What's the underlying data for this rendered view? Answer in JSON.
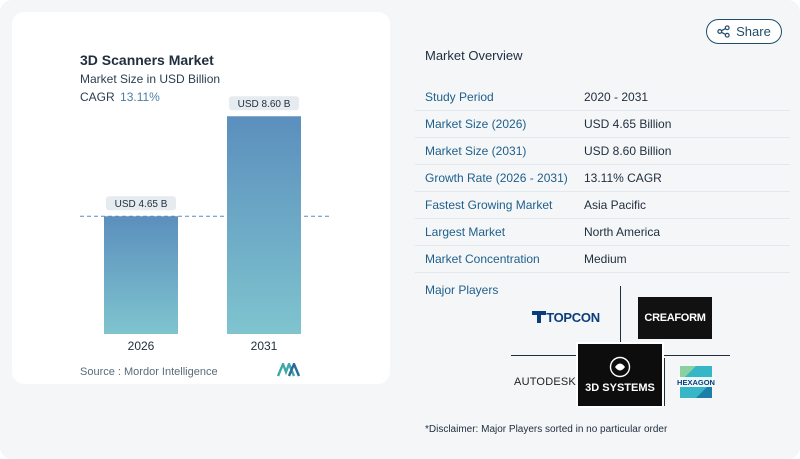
{
  "chart_data": {
    "type": "bar",
    "title": "3D Scanners Market",
    "subtitle": "Market Size in USD Billion",
    "cagr_label": "CAGR",
    "cagr_value": "13.11%",
    "categories": [
      "2026",
      "2031"
    ],
    "values": [
      4.65,
      8.6
    ],
    "data_labels": [
      "USD 4.65 B",
      "USD 8.60 B"
    ],
    "ylim": [
      0,
      9.4
    ],
    "colors": {
      "bar_top": "#5b8fbd",
      "bar_bottom": "#7fc4cf",
      "label_bg": "#e6ebf0",
      "ref_line": "#5b8fbd"
    }
  },
  "source": "Source :  Mordor Intelligence",
  "share_label": "Share",
  "overview": {
    "title": "Market Overview",
    "rows": [
      {
        "key": "Study Period",
        "value": "2020 - 2031"
      },
      {
        "key": "Market Size (2026)",
        "value": "USD 4.65 Billion"
      },
      {
        "key": "Market Size (2031)",
        "value": "USD 8.60 Billion"
      },
      {
        "key": "Growth Rate (2026 - 2031)",
        "value": "13.11% CAGR"
      },
      {
        "key": "Fastest Growing Market",
        "value": "Asia Pacific"
      },
      {
        "key": "Largest Market",
        "value": "North America"
      },
      {
        "key": "Market Concentration",
        "value": "Medium"
      }
    ]
  },
  "players": {
    "label": "Major Players",
    "topcon": "TOPCON",
    "creaform": "CREAFORM",
    "autodesk": "AUTODESK",
    "systems": "3D SYSTEMS",
    "hexagon": "HEXAGON"
  },
  "disclaimer": "*Disclaimer: Major Players sorted in no particular order"
}
